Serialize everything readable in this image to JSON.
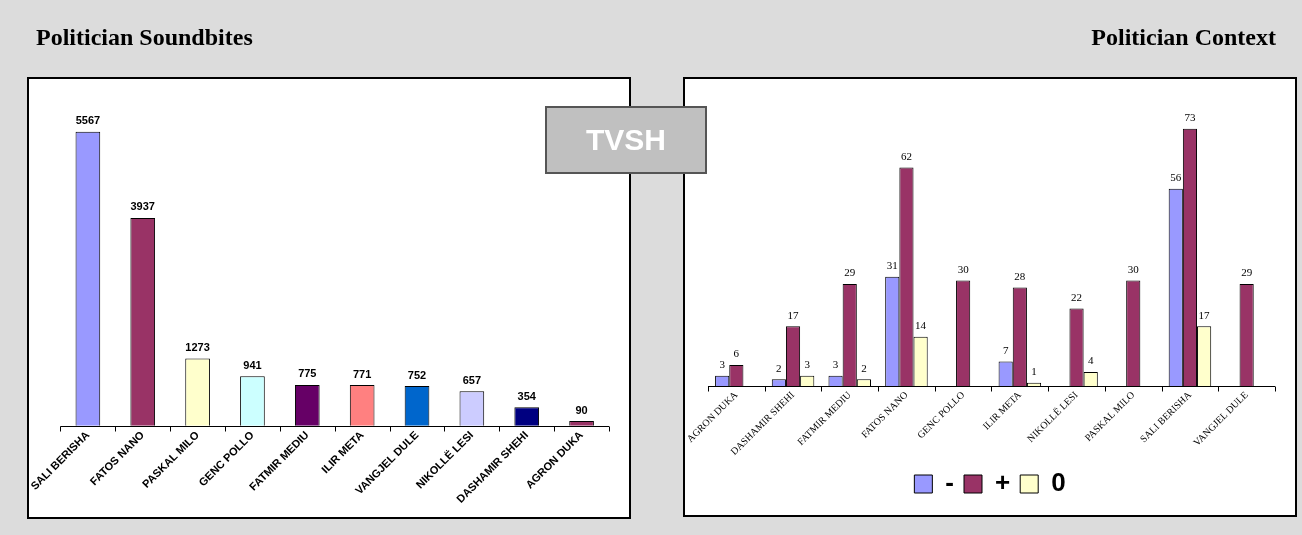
{
  "chart_data": [
    {
      "type": "bar",
      "title": "Politician Soundbites",
      "annotations": [
        "TVSH"
      ],
      "categories": [
        "SALI BERISHA",
        "FATOS NANO",
        "PASKAL MILO",
        "GENC POLLO",
        "FATMIR MEDIU",
        "ILIR META",
        "VANGJEL DULE",
        "NIKOLLË LESI",
        "DASHAMIR SHEHI",
        "AGRON DUKA"
      ],
      "values": [
        5567,
        3937,
        1273,
        941,
        775,
        771,
        752,
        657,
        354,
        90
      ],
      "colors": [
        "#9999ff",
        "#993366",
        "#ffffcc",
        "#ccffff",
        "#660066",
        "#ff8080",
        "#0066cc",
        "#ccccff",
        "#000080",
        "#993366"
      ],
      "data_labels": true,
      "grid": false,
      "legend": false
    },
    {
      "type": "bar",
      "title": "Politician Context",
      "categories": [
        "AGRON DUKA",
        "DASHAMIR SHEHI",
        "FATMIR MEDIU",
        "FATOS NANO",
        "GENC POLLO",
        "ILIR META",
        "NIKOLLË LESI",
        "PASKAL MILO",
        "SALI BERISHA",
        "VANGJEL DULE"
      ],
      "series": [
        {
          "name": "-",
          "color": "#9999ff",
          "values": [
            3,
            2,
            3,
            31,
            null,
            7,
            null,
            null,
            56,
            null
          ]
        },
        {
          "name": "+",
          "color": "#993366",
          "values": [
            6,
            17,
            29,
            62,
            30,
            28,
            22,
            30,
            73,
            29
          ]
        },
        {
          "name": "0",
          "color": "#ffffcc",
          "values": [
            null,
            3,
            2,
            14,
            null,
            1,
            4,
            null,
            17,
            null
          ]
        }
      ],
      "data_labels": true,
      "grid": false,
      "legend": "bottom"
    }
  ]
}
